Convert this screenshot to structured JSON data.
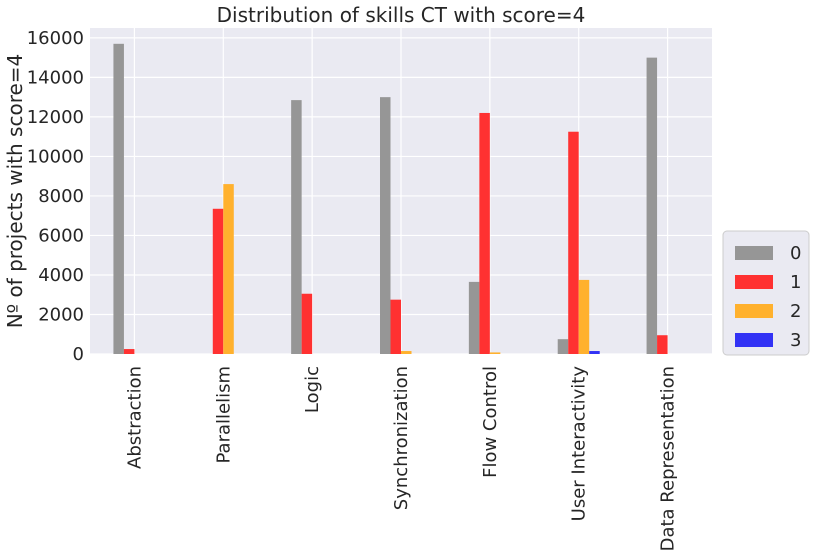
{
  "chart_data": {
    "type": "bar",
    "title": "Distribution of skills CT with score=4",
    "xlabel": "",
    "ylabel": "Nº of projects with score=4",
    "ylim": [
      0,
      16500
    ],
    "yticks": [
      0,
      2000,
      4000,
      6000,
      8000,
      10000,
      12000,
      14000,
      16000
    ],
    "grid": true,
    "legend_position": "right",
    "categories": [
      "Abstraction",
      "Parallelism",
      "Logic",
      "Synchronization",
      "Flow Control",
      "User Interactivity",
      "Data Representation"
    ],
    "series": [
      {
        "name": "0",
        "color": "#969696",
        "values": [
          15700,
          0,
          12850,
          13000,
          3650,
          750,
          15000
        ]
      },
      {
        "name": "1",
        "color": "#ff3131",
        "values": [
          250,
          7350,
          3050,
          2750,
          12200,
          11250,
          950
        ]
      },
      {
        "name": "2",
        "color": "#ffb12e",
        "values": [
          0,
          8600,
          0,
          150,
          80,
          3750,
          0
        ]
      },
      {
        "name": "3",
        "color": "#3232f5",
        "values": [
          0,
          0,
          0,
          0,
          0,
          150,
          0
        ]
      }
    ]
  }
}
